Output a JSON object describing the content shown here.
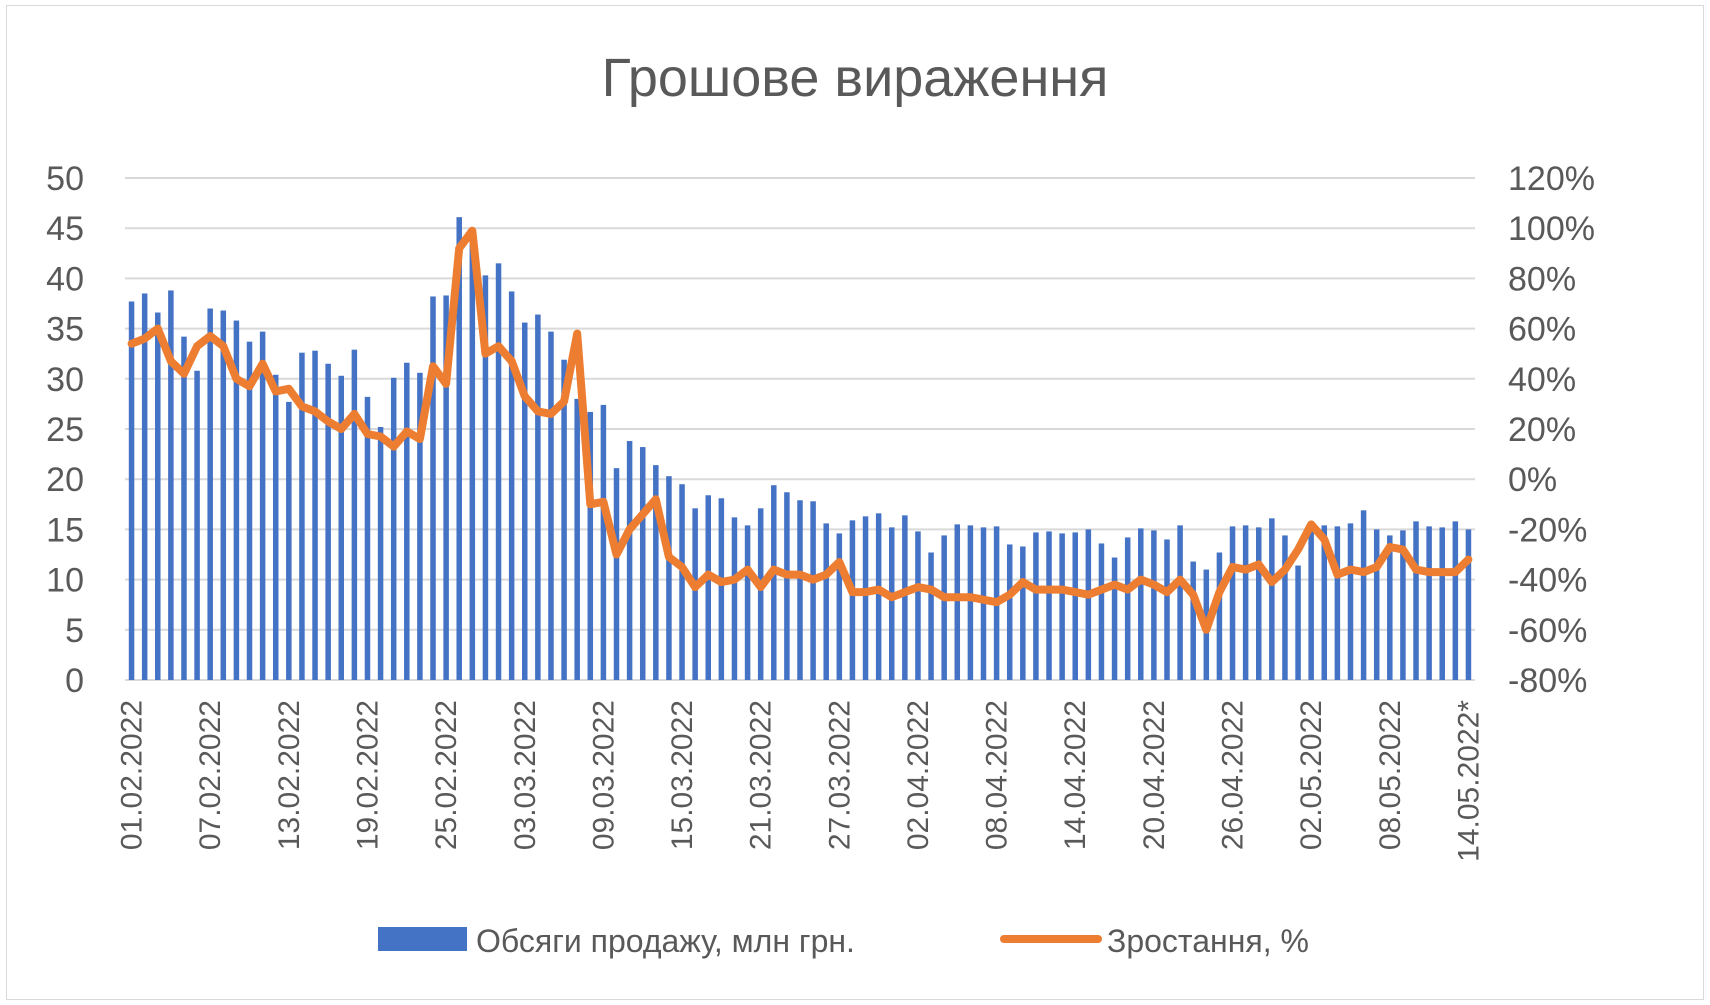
{
  "chart_data": {
    "type": "bar+line",
    "title": "Грошове вираження",
    "xlabel": "",
    "ylabel_left": "",
    "ylabel_right": "",
    "ylim_left": [
      0,
      50
    ],
    "ylim_right": [
      -80,
      120
    ],
    "left_ticks": [
      "0",
      "5",
      "10",
      "15",
      "20",
      "25",
      "30",
      "35",
      "40",
      "45",
      "50"
    ],
    "right_ticks": [
      "-80%",
      "-60%",
      "-40%",
      "-20%",
      "0%",
      "20%",
      "40%",
      "60%",
      "80%",
      "100%",
      "120%"
    ],
    "x_tick_labels": [
      "01.02.2022",
      "07.02.2022",
      "13.02.2022",
      "19.02.2022",
      "25.02.2022",
      "03.03.2022",
      "09.03.2022",
      "15.03.2022",
      "21.03.2022",
      "27.03.2022",
      "02.04.2022",
      "08.04.2022",
      "14.04.2022",
      "20.04.2022",
      "26.04.2022",
      "02.05.2022",
      "08.05.2022",
      "14.05.2022*"
    ],
    "x_tick_every": 6,
    "grid": true,
    "legend_position": "bottom",
    "colors": {
      "bar": "#4472c4",
      "line": "#ed7d31",
      "grid": "#d9d9d9",
      "text": "#595959"
    },
    "series": [
      {
        "name": "Обсяги продажу, млн грн.",
        "type": "bar",
        "axis": "left",
        "values": [
          37.7,
          38.5,
          36.6,
          38.8,
          34.2,
          30.8,
          37.0,
          36.8,
          35.8,
          33.7,
          34.7,
          30.4,
          27.7,
          32.6,
          32.8,
          31.5,
          30.3,
          32.9,
          28.2,
          25.2,
          30.1,
          31.6,
          30.6,
          38.2,
          38.3,
          46.1,
          44.5,
          40.3,
          41.5,
          38.7,
          35.6,
          36.4,
          34.7,
          31.9,
          28.0,
          26.7,
          27.4,
          21.1,
          23.8,
          23.2,
          21.4,
          20.3,
          19.5,
          17.1,
          18.4,
          18.1,
          16.2,
          15.4,
          17.1,
          19.4,
          18.7,
          17.9,
          17.8,
          15.6,
          14.6,
          15.9,
          16.3,
          16.6,
          15.2,
          16.4,
          14.8,
          12.7,
          14.4,
          15.5,
          15.4,
          15.2,
          15.3,
          13.5,
          13.3,
          14.7,
          14.8,
          14.6,
          14.7,
          15.0,
          13.6,
          12.2,
          14.2,
          15.1,
          14.9,
          14.0,
          15.4,
          11.8,
          11.0,
          12.7,
          15.3,
          15.4,
          15.2,
          16.1,
          14.4,
          11.4,
          14.9,
          15.4,
          15.3,
          15.6,
          16.9,
          15.0,
          14.4,
          14.9,
          15.8,
          15.3,
          15.2,
          15.8,
          15.0
        ]
      },
      {
        "name": "Зростання, %",
        "type": "line",
        "axis": "right",
        "values": [
          54,
          56,
          60,
          47,
          42,
          53,
          57,
          53,
          40,
          37,
          46,
          35,
          36,
          29,
          27,
          23,
          20,
          26,
          18,
          17,
          13,
          19,
          16,
          45,
          38,
          92,
          99,
          50,
          53,
          47,
          33,
          27,
          26,
          31,
          58,
          -10,
          -9,
          -30,
          -20,
          -14,
          -8,
          -31,
          -35,
          -43,
          -38,
          -41,
          -40,
          -36,
          -43,
          -36,
          -38,
          -38,
          -40,
          -38,
          -33,
          -45,
          -45,
          -44,
          -47,
          -45,
          -43,
          -44,
          -47,
          -47,
          -47,
          -48,
          -49,
          -46,
          -41,
          -44,
          -44,
          -44,
          -45,
          -46,
          -44,
          -42,
          -44,
          -40,
          -42,
          -45,
          -40,
          -46,
          -60,
          -45,
          -35,
          -36,
          -34,
          -41,
          -36,
          -28,
          -18,
          -24,
          -38,
          -36,
          -37,
          -35,
          -27,
          -28,
          -36,
          -37,
          -37,
          -37,
          -32
        ]
      }
    ]
  }
}
